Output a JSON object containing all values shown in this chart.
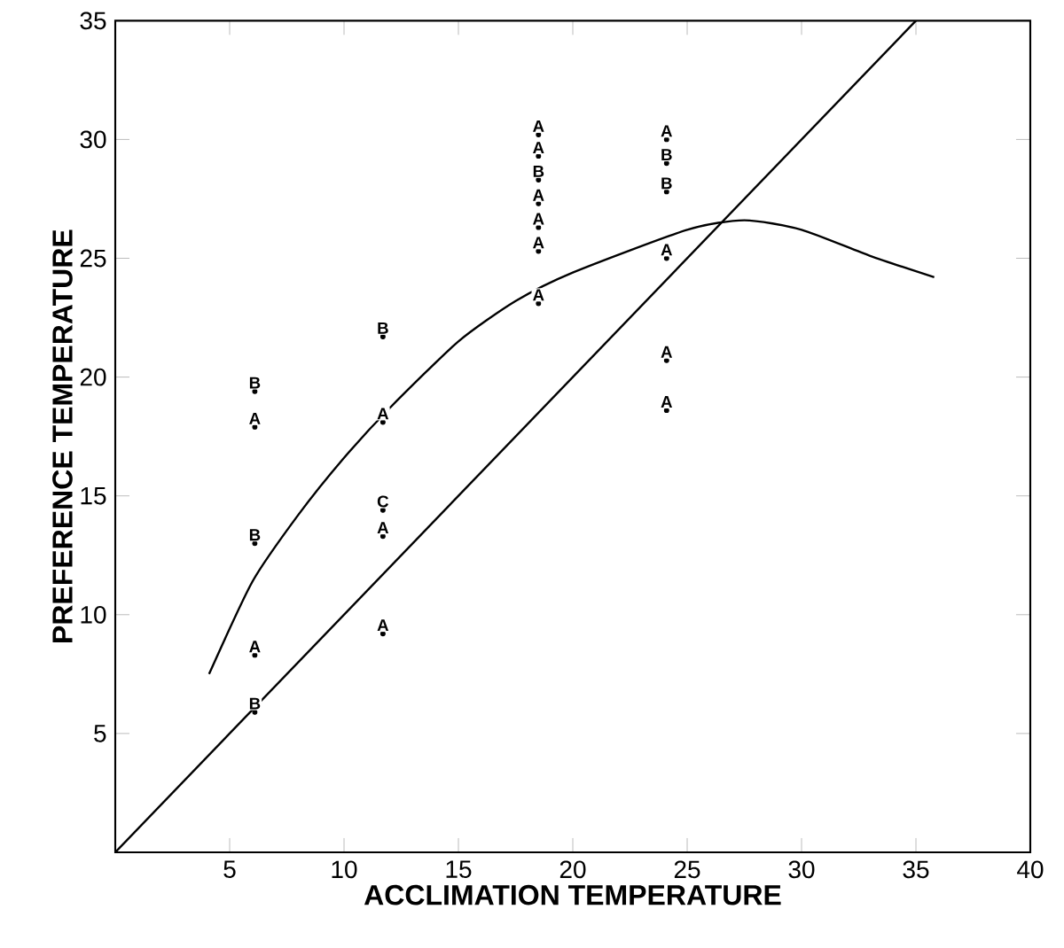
{
  "chart_data": {
    "type": "scatter",
    "xlabel": "ACCLIMATION TEMPERATURE",
    "ylabel": "PREFERENCE TEMPERATURE",
    "xlim": [
      0,
      40
    ],
    "ylim": [
      0,
      35
    ],
    "xticks": [
      5,
      10,
      15,
      20,
      25,
      30,
      35,
      40
    ],
    "yticks": [
      5,
      10,
      15,
      20,
      25,
      30,
      35
    ],
    "line_style": "solid",
    "series": [
      {
        "name": "A",
        "color": "#000000",
        "x": [
          6.1,
          6.1,
          11.7,
          11.7,
          11.7,
          18.5,
          18.5,
          18.5,
          18.5,
          18.5,
          18.5,
          24.1,
          24.1,
          24.1,
          24.1
        ],
        "values": [
          17.9,
          8.3,
          18.1,
          13.3,
          9.2,
          30.2,
          29.3,
          27.3,
          26.3,
          25.3,
          23.1,
          30.0,
          25.0,
          20.7,
          18.6
        ]
      },
      {
        "name": "B",
        "color": "#000000",
        "x": [
          6.1,
          6.1,
          6.1,
          11.7,
          18.5,
          24.1,
          24.1
        ],
        "values": [
          19.4,
          13.0,
          5.9,
          21.7,
          28.3,
          29.0,
          27.8
        ]
      },
      {
        "name": "C",
        "color": "#000000",
        "x": [
          11.7
        ],
        "values": [
          14.4
        ]
      },
      {
        "type": "line",
        "color": "#000000",
        "x": [
          4.1,
          6,
          8,
          10,
          12,
          15,
          17.5,
          20,
          25,
          27.5,
          30,
          33,
          35.8
        ],
        "values": [
          7.5,
          11.4,
          14.2,
          16.6,
          18.7,
          21.5,
          23.2,
          24.4,
          26.2,
          26.6,
          26.2,
          25.1,
          24.2
        ]
      },
      {
        "type": "line",
        "color": "#000000",
        "x": [
          0,
          35
        ],
        "values": [
          0,
          35
        ]
      }
    ]
  }
}
